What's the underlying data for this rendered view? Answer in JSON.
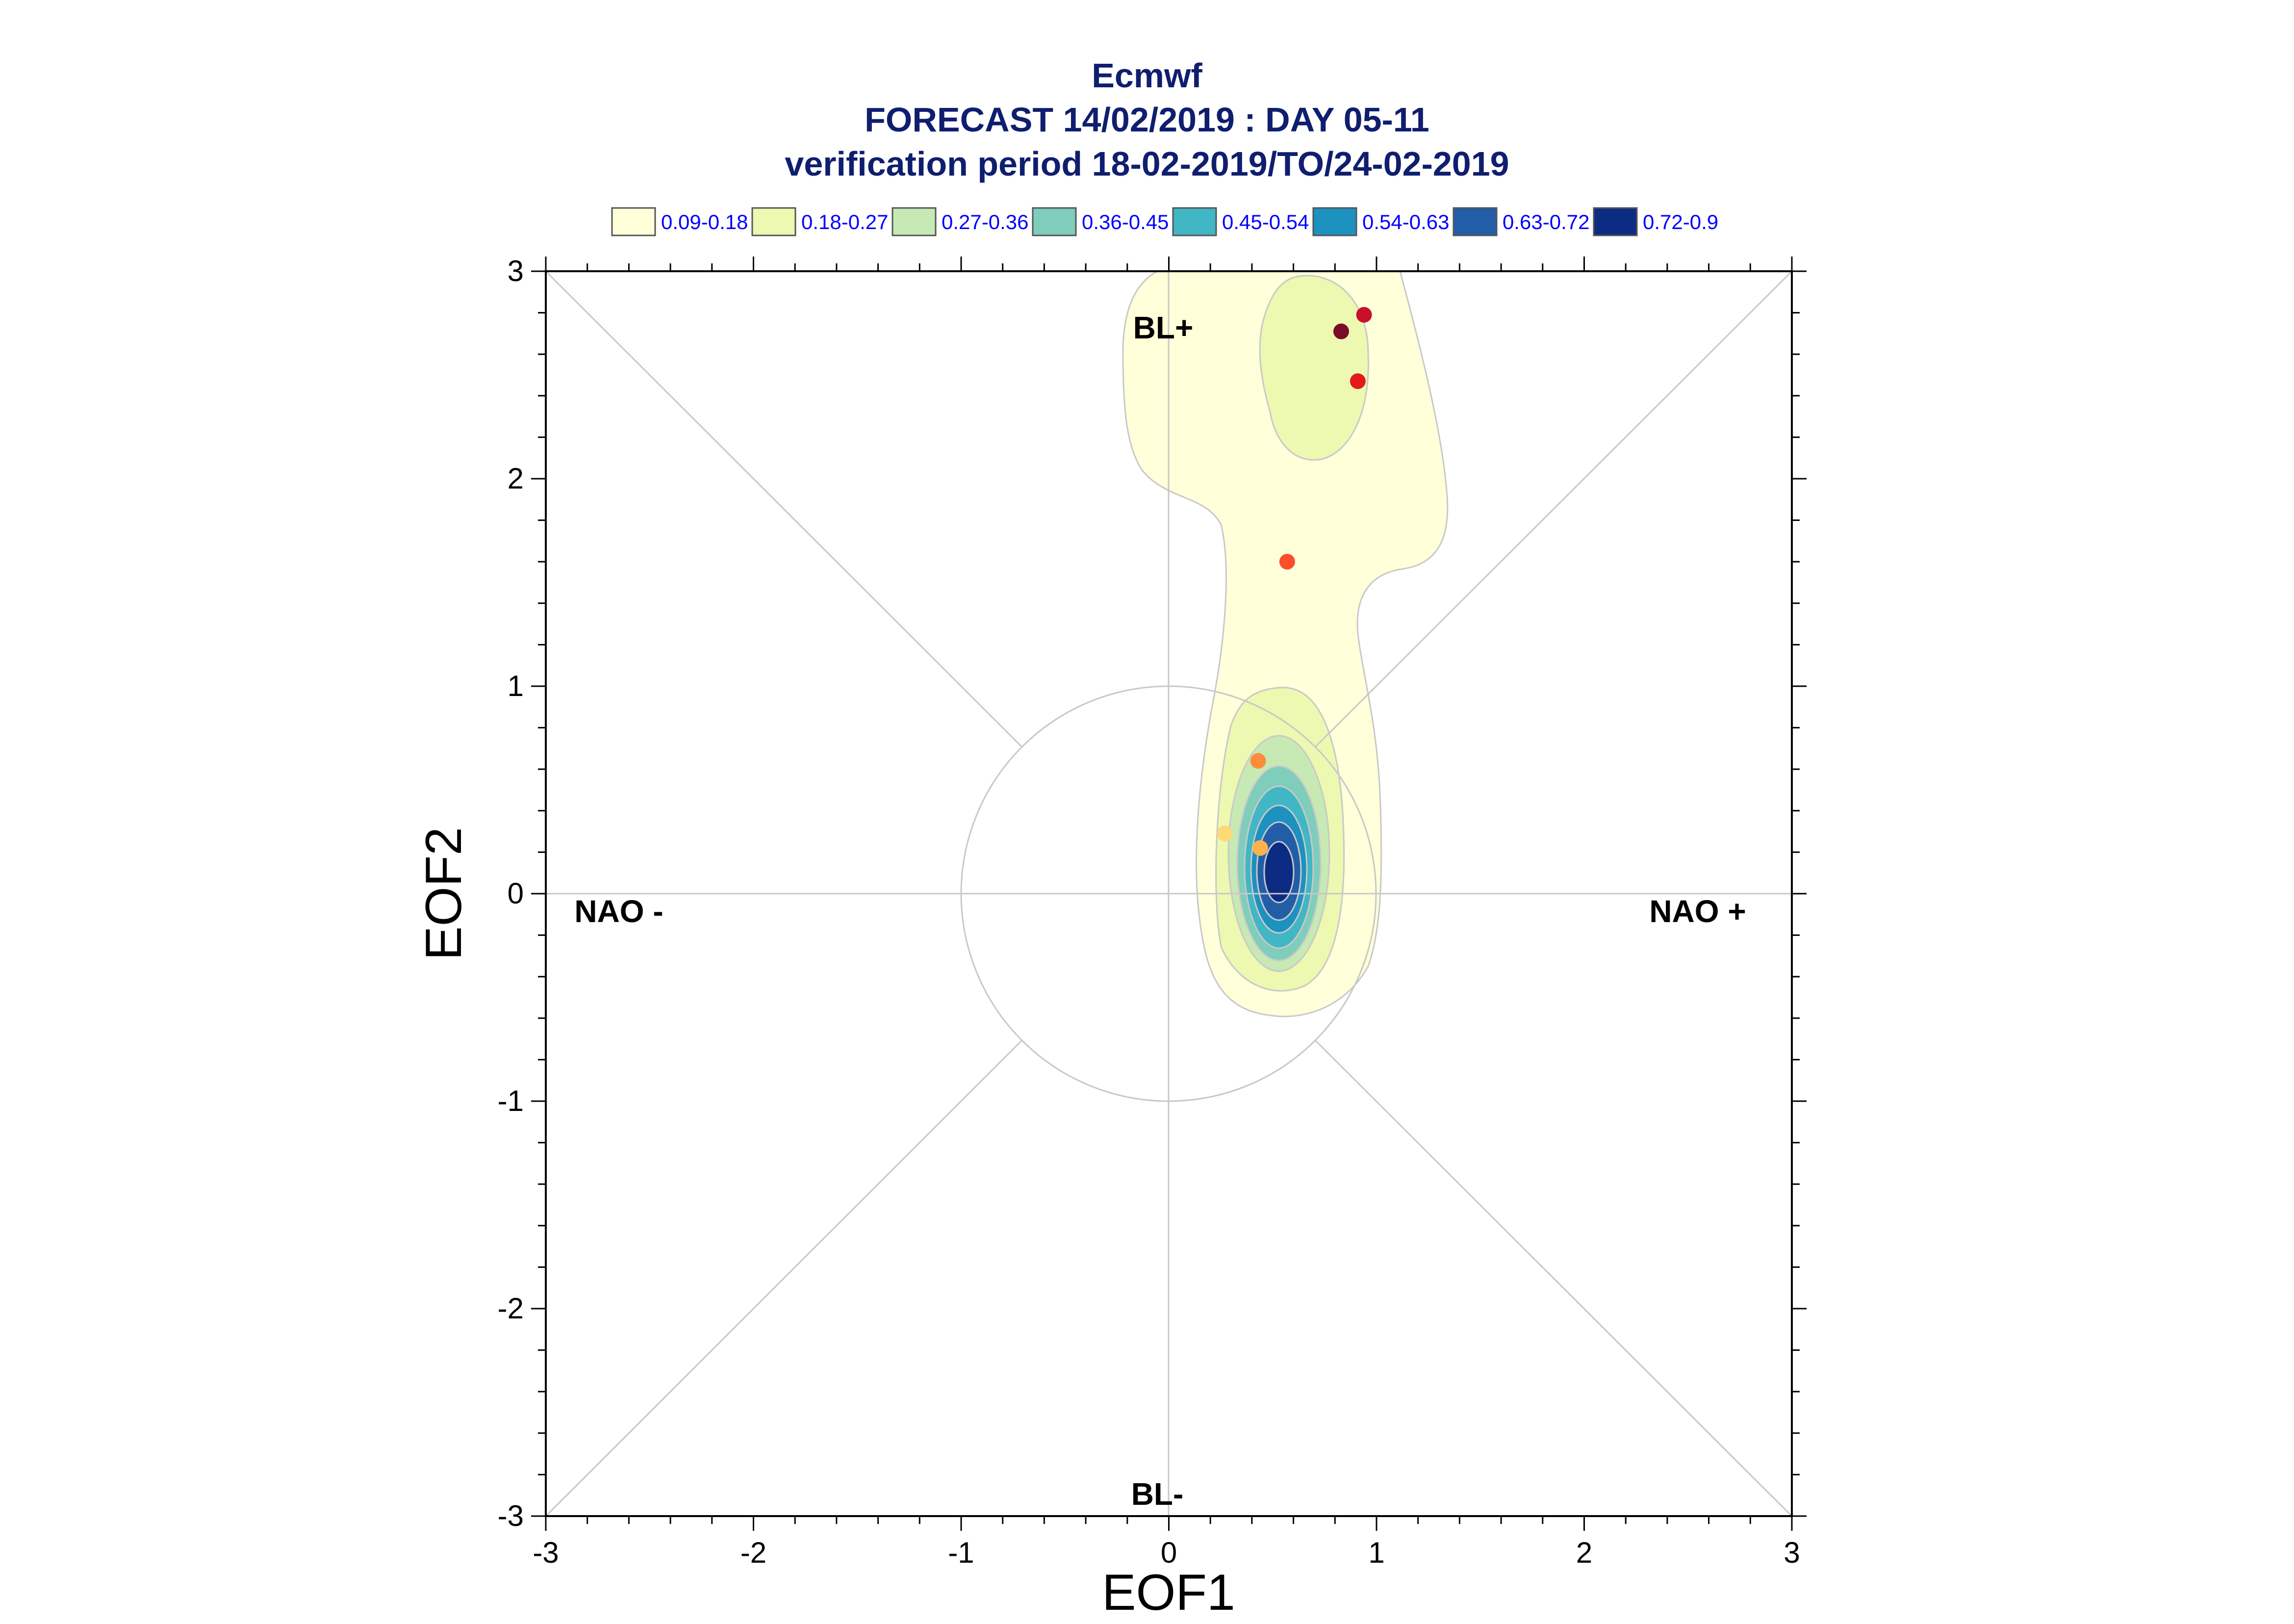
{
  "chart_data": {
    "type": "scatter",
    "title": [
      "Ecmwf",
      "FORECAST 14/02/2019 : DAY 05-11",
      "verification period 18-02-2019/TO/24-02-2019"
    ],
    "xlabel": "EOF1",
    "ylabel": "EOF2",
    "xlim": [
      -3,
      3
    ],
    "ylim": [
      -3,
      3
    ],
    "xticks": [
      "-3",
      "-2",
      "-1",
      "0",
      "1",
      "2",
      "3"
    ],
    "yticks": [
      "-3",
      "-2",
      "-1",
      "0",
      "1",
      "2",
      "3"
    ],
    "regime_labels": {
      "top": "BL+",
      "bottom": "BL-",
      "left": "NAO -",
      "right": "NAO +"
    },
    "reference_circle_radius": 1,
    "density_legend": [
      {
        "label": "0.09-0.18",
        "color": "#ffffd9"
      },
      {
        "label": "0.18-0.27",
        "color": "#edf8b1"
      },
      {
        "label": "0.27-0.36",
        "color": "#c7e9b4"
      },
      {
        "label": "0.36-0.45",
        "color": "#7fcdbb"
      },
      {
        "label": "0.45-0.54",
        "color": "#41b6c4"
      },
      {
        "label": "0.54-0.63",
        "color": "#1d91c0"
      },
      {
        "label": "0.63-0.72",
        "color": "#225ea8"
      },
      {
        "label": "0.72-0.9",
        "color": "#0c2c84"
      }
    ],
    "density_centers": [
      {
        "x": 0.53,
        "y": 0.1
      },
      {
        "x": 0.84,
        "y": 2.5
      }
    ],
    "points": [
      {
        "x": 0.83,
        "y": 2.71,
        "color": "#7a0c2a"
      },
      {
        "x": 0.94,
        "y": 2.79,
        "color": "#c8102e"
      },
      {
        "x": 0.91,
        "y": 2.47,
        "color": "#e31a1c"
      },
      {
        "x": 0.57,
        "y": 1.6,
        "color": "#fc4e2a"
      },
      {
        "x": 0.43,
        "y": 0.64,
        "color": "#fd8d3c"
      },
      {
        "x": 0.44,
        "y": 0.22,
        "color": "#feb24c"
      },
      {
        "x": 0.27,
        "y": 0.29,
        "color": "#fed976"
      }
    ]
  }
}
